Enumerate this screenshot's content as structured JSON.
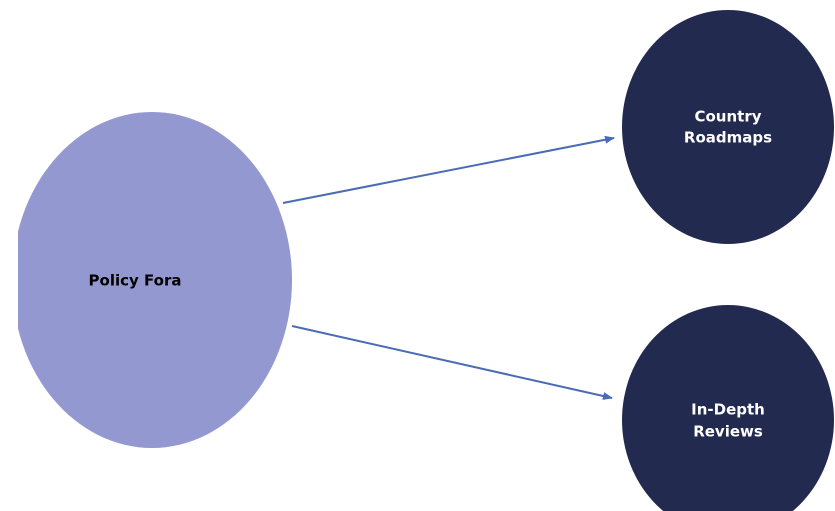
{
  "nodes": [
    {
      "label": "Policy Fora"
    },
    {
      "lines": [
        "Country",
        "Roadmaps"
      ]
    },
    {
      "lines": [
        "In-Depth",
        "Reviews"
      ]
    }
  ]
}
